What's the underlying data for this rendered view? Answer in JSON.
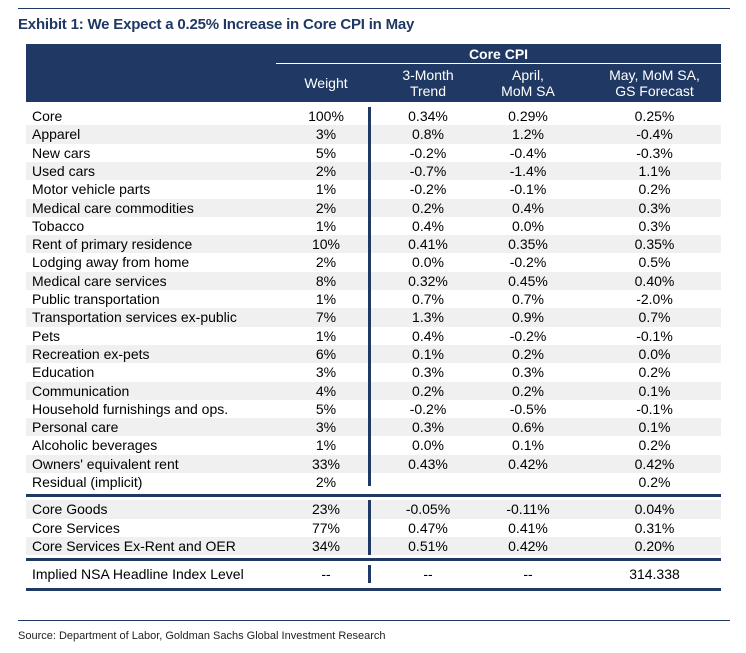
{
  "exhibit_title": "Exhibit 1: We Expect a 0.25% Increase in Core CPI in May",
  "table": {
    "group_header": "Core CPI",
    "columns": {
      "weight": "Weight",
      "three_month": "3-Month\nTrend",
      "april": "April,\nMoM SA",
      "may": "May, MoM SA,\nGS Forecast"
    },
    "rows": [
      {
        "label": "Core",
        "weight": "100%",
        "three_month": "0.34%",
        "april": "0.29%",
        "may": "0.25%"
      },
      {
        "label": "Apparel",
        "weight": "3%",
        "three_month": "0.8%",
        "april": "1.2%",
        "may": "-0.4%"
      },
      {
        "label": "New cars",
        "weight": "5%",
        "three_month": "-0.2%",
        "april": "-0.4%",
        "may": "-0.3%"
      },
      {
        "label": "Used cars",
        "weight": "2%",
        "three_month": "-0.7%",
        "april": "-1.4%",
        "may": "1.1%"
      },
      {
        "label": "Motor vehicle parts",
        "weight": "1%",
        "three_month": "-0.2%",
        "april": "-0.1%",
        "may": "0.2%"
      },
      {
        "label": "Medical care commodities",
        "weight": "2%",
        "three_month": "0.2%",
        "april": "0.4%",
        "may": "0.3%"
      },
      {
        "label": "Tobacco",
        "weight": "1%",
        "three_month": "0.4%",
        "april": "0.0%",
        "may": "0.3%"
      },
      {
        "label": "Rent of primary residence",
        "weight": "10%",
        "three_month": "0.41%",
        "april": "0.35%",
        "may": "0.35%"
      },
      {
        "label": "Lodging away from home",
        "weight": "2%",
        "three_month": "0.0%",
        "april": "-0.2%",
        "may": "0.5%"
      },
      {
        "label": "Medical care services",
        "weight": "8%",
        "three_month": "0.32%",
        "april": "0.45%",
        "may": "0.40%"
      },
      {
        "label": "Public transportation",
        "weight": "1%",
        "three_month": "0.7%",
        "april": "0.7%",
        "may": "-2.0%"
      },
      {
        "label": "Transportation services ex-public",
        "weight": "7%",
        "three_month": "1.3%",
        "april": "0.9%",
        "may": "0.7%"
      },
      {
        "label": "Pets",
        "weight": "1%",
        "three_month": "0.4%",
        "april": "-0.2%",
        "may": "-0.1%"
      },
      {
        "label": "Recreation ex-pets",
        "weight": "6%",
        "three_month": "0.1%",
        "april": "0.2%",
        "may": "0.0%"
      },
      {
        "label": "Education",
        "weight": "3%",
        "three_month": "0.3%",
        "april": "0.3%",
        "may": "0.2%"
      },
      {
        "label": "Communication",
        "weight": "4%",
        "three_month": "0.2%",
        "april": "0.2%",
        "may": "0.1%"
      },
      {
        "label": "Household furnishings and ops.",
        "weight": "5%",
        "three_month": "-0.2%",
        "april": "-0.5%",
        "may": "-0.1%"
      },
      {
        "label": "Personal care",
        "weight": "3%",
        "three_month": "0.3%",
        "april": "0.6%",
        "may": "0.1%"
      },
      {
        "label": "Alcoholic beverages",
        "weight": "1%",
        "three_month": "0.0%",
        "april": "0.1%",
        "may": "0.2%"
      },
      {
        "label": "Owners' equivalent rent",
        "weight": "33%",
        "three_month": "0.43%",
        "april": "0.42%",
        "may": "0.42%"
      },
      {
        "label": "Residual (implicit)",
        "weight": "2%",
        "three_month": "",
        "april": "",
        "may": "0.2%"
      }
    ],
    "summary_rows": [
      {
        "label": "Core Goods",
        "weight": "23%",
        "three_month": "-0.05%",
        "april": "-0.11%",
        "may": "0.04%"
      },
      {
        "label": "Core Services",
        "weight": "77%",
        "three_month": "0.47%",
        "april": "0.41%",
        "may": "0.31%"
      },
      {
        "label": "Core Services Ex-Rent and OER",
        "weight": "34%",
        "three_month": "0.51%",
        "april": "0.42%",
        "may": "0.20%"
      }
    ],
    "headline_row": {
      "label": "Implied NSA Headline Index Level",
      "weight": "--",
      "three_month": "--",
      "april": "--",
      "may": "314.338"
    }
  },
  "source": "Source: Department of Labor, Goldman Sachs Global Investment Research",
  "colors": {
    "navy": "#1f3864",
    "row_shade": "#f0f0f0"
  }
}
